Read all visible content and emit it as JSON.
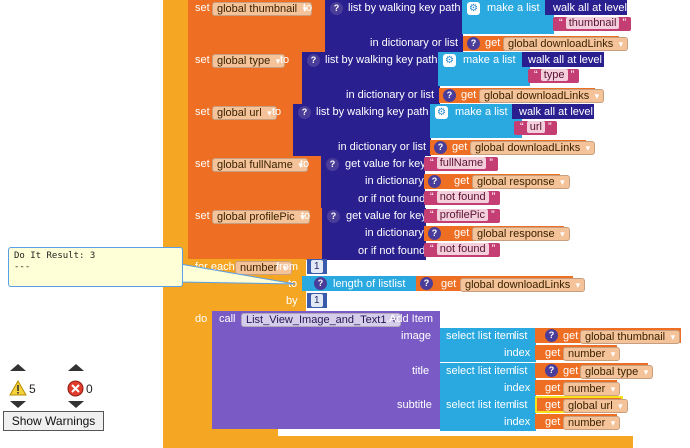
{
  "colors": {
    "variables": "#ee6f23",
    "procedures": "#593d9b",
    "lists": "#29a9e0",
    "dictionaries": "#2a1f8f",
    "text": "#c43d73",
    "math": "#3a5bab",
    "control": "#f5a623",
    "components": "#7a5bc6"
  },
  "set_blocks": [
    {
      "set": "set",
      "var": "global thumbnail",
      "to": "to",
      "op": "list by walking key path",
      "key_label": "in dictionary or list",
      "make_list": "make a list",
      "walk": "walk all at level",
      "key_string": "thumbnail",
      "get": "get",
      "source": "global downloadLinks"
    },
    {
      "set": "set",
      "var": "global type",
      "to": "to",
      "op": "list by walking key path",
      "key_label": "in dictionary or list",
      "make_list": "make a list",
      "walk": "walk all at level",
      "key_string": "type",
      "get": "get",
      "source": "global downloadLinks"
    },
    {
      "set": "set",
      "var": "global url",
      "to": "to",
      "op": "list by walking key path",
      "key_label": "in dictionary or list",
      "make_list": "make a list",
      "walk": "walk all at level",
      "key_string": "url",
      "get": "get",
      "source": "global downloadLinks"
    }
  ],
  "value_blocks": [
    {
      "set": "set",
      "var": "global fullName",
      "to": "to",
      "op": "get value for key",
      "key_string": "fullName",
      "dict_label": "in dictionary",
      "get": "get",
      "dict": "global response",
      "notfound_label": "or if not found",
      "notfound": "not found"
    },
    {
      "set": "set",
      "var": "global profilePic",
      "to": "to",
      "op": "get value for key",
      "key_string": "profilePic",
      "dict_label": "in dictionary",
      "get": "get",
      "dict": "global response",
      "notfound_label": "or if not found",
      "notfound": "not found"
    }
  ],
  "for_each": {
    "label": "for each",
    "var": "number",
    "from": "from",
    "from_val": "1",
    "to": "to",
    "length_label": "length of list",
    "list_label": "list",
    "get": "get",
    "list": "global downloadLinks",
    "by": "by",
    "by_val": "1",
    "do": "do"
  },
  "call": {
    "call": "call",
    "component": "List_View_Image_and_Text1",
    "method": ".Add Item",
    "slots": [
      {
        "name": "image",
        "select": "select list item",
        "list_label": "list",
        "get": "get",
        "list": "global thumbnail",
        "index_label": "index",
        "index_get": "get",
        "index": "number"
      },
      {
        "name": "title",
        "select": "select list item",
        "list_label": "list",
        "get": "get",
        "list": "global type",
        "index_label": "index",
        "index_get": "get",
        "index": "number"
      },
      {
        "name": "subtitle",
        "select": "select list item",
        "list_label": "list",
        "get": "get",
        "list": "global url",
        "index_label": "index",
        "index_get": "get",
        "index": "number"
      }
    ]
  },
  "tooltip": {
    "line1": "Do It Result: 3",
    "line2": "---"
  },
  "warnings": {
    "warning_count": "5",
    "error_count": "0",
    "button": "Show Warnings"
  },
  "icons": {
    "help": "?",
    "gear": "⚙",
    "warning": "warning-triangle-icon",
    "error": "error-x-icon"
  }
}
